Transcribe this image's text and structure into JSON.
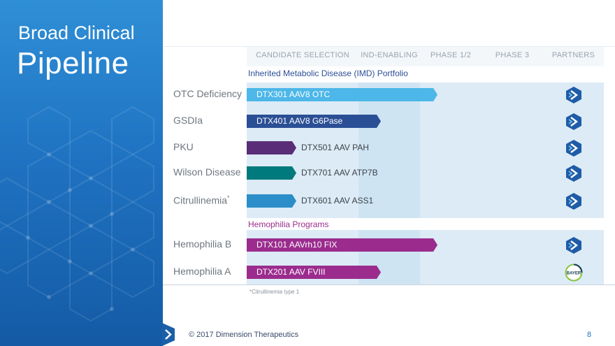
{
  "title": {
    "line1": "Broad Clinical",
    "line2": "Pipeline"
  },
  "phases": [
    "CANDIDATE SELECTION",
    "IND-ENABLING",
    "PHASE 1/2",
    "PHASE 3",
    "PARTNERS"
  ],
  "sections": {
    "imd": "Inherited Metabolic Disease (IMD) Portfolio",
    "hemophilia": "Hemophilia Programs"
  },
  "programs": [
    {
      "indication": "OTC Deficiency",
      "superscript": "",
      "candidate": "DTX301 AAV8 OTC",
      "progress": "Phase 1/2",
      "partner": "Ultragenyx",
      "color": "#4cb7e8",
      "label_inside": true
    },
    {
      "indication": "GSDIa",
      "superscript": "",
      "candidate": "DTX401 AAV8 G6Pase",
      "progress": "IND-Enabling",
      "partner": "Ultragenyx",
      "color": "#2b4f95",
      "label_inside": true
    },
    {
      "indication": "PKU",
      "superscript": "",
      "candidate": "DTX501 AAV PAH",
      "progress": "Candidate Selection",
      "partner": "Ultragenyx",
      "color": "#5a2d78",
      "label_inside": false
    },
    {
      "indication": "Wilson Disease",
      "superscript": "",
      "candidate": "DTX701 AAV ATP7B",
      "progress": "Candidate Selection",
      "partner": "Ultragenyx",
      "color": "#007a7c",
      "label_inside": false
    },
    {
      "indication": "Citrullinemia",
      "superscript": "*",
      "candidate": "DTX601 AAV ASS1",
      "progress": "Candidate Selection",
      "partner": "Ultragenyx",
      "color": "#2b8ec9",
      "label_inside": false
    },
    {
      "indication": "Hemophilia B",
      "superscript": "",
      "candidate": "DTX101 AAVrh10 FIX",
      "progress": "Phase 1/2",
      "partner": "Ultragenyx",
      "color": "#9b2c8e",
      "label_inside": true
    },
    {
      "indication": "Hemophilia A",
      "superscript": "",
      "candidate": "DTX201 AAV FVIII",
      "progress": "IND-Enabling",
      "partner": "Bayer",
      "color": "#9b2c8e",
      "label_inside": true
    }
  ],
  "bayer_logo_text": "BAYER",
  "footnote": "*Citrullinemia type 1",
  "footer": {
    "copyright": "© 2017 Dimension Therapeutics",
    "page": "8"
  }
}
